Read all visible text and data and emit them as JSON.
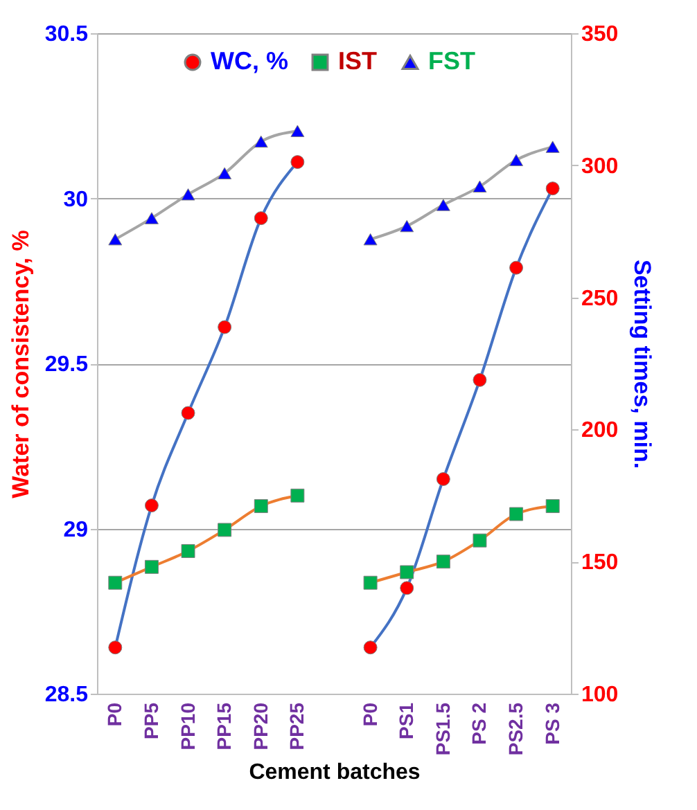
{
  "chart_data": {
    "type": "line",
    "xlabel": "Cement batches",
    "ylabel": "Water of consistency, %",
    "y2label": "Setting times, min.",
    "categories": [
      "P0",
      "PP5",
      "PP10",
      "PP15",
      "PP20",
      "PP25",
      null,
      "P0",
      "PS1",
      "PS1.5",
      "PS 2",
      "PS2.5",
      "PS 3"
    ],
    "series": [
      {
        "name": "WC, %",
        "color": "#4472c4",
        "marker": "circle",
        "colors": [
          "#ff0000",
          "#ff0000",
          "#ff0000",
          "#ff0000",
          "#ff0000",
          "#ff0000",
          "#ff0000",
          "#ff0000",
          "#ff0000",
          "#ff0000",
          "#ff0000",
          "#ff0000",
          "#ff0000"
        ],
        "values": [
          28.64,
          29.07,
          29.35,
          29.61,
          29.94,
          30.11,
          null,
          28.64,
          28.82,
          29.15,
          29.45,
          29.79,
          30.03
        ]
      },
      {
        "name": "IST",
        "color": "#ed7d31",
        "marker": "square",
        "axis": "y2",
        "colors": [
          "#00b050",
          "#00b050",
          "#00b050",
          "#00b050",
          "#00b050",
          "#00b050",
          "#00b050",
          "#00b050",
          "#00b050",
          "#00b050",
          "#00b050",
          "#00b050",
          "#00b050"
        ],
        "values": [
          142,
          148,
          154,
          162,
          171,
          175,
          null,
          142,
          146,
          150,
          158,
          168,
          171
        ]
      },
      {
        "name": "FST",
        "color": "#a5a5a5",
        "marker": "triangle",
        "axis": "y2",
        "colors": [
          "#0000ff",
          "#0000ff",
          "#0000ff",
          "#0000ff",
          "#0000ff",
          "#0000ff",
          "#0000ff",
          "#0000ff",
          "#0000ff",
          "#0000ff",
          "#0000ff",
          "#0000ff",
          "#0000ff"
        ],
        "values": [
          272,
          280,
          289,
          297,
          309,
          313,
          null,
          272,
          277,
          285,
          292,
          302,
          307
        ]
      }
    ],
    "ylim": [
      28.5,
      30.5
    ],
    "yticks": [
      28.5,
      {
        "value": 29,
        "label": "29"
      },
      29.5,
      {
        "value": 30,
        "label": "30"
      },
      30.5
    ],
    "y2lim": [
      100,
      350
    ],
    "y2ticks": [
      100,
      150,
      200,
      250,
      300,
      350
    ],
    "grid": "y",
    "legend": "top",
    "line_style": "solid"
  }
}
